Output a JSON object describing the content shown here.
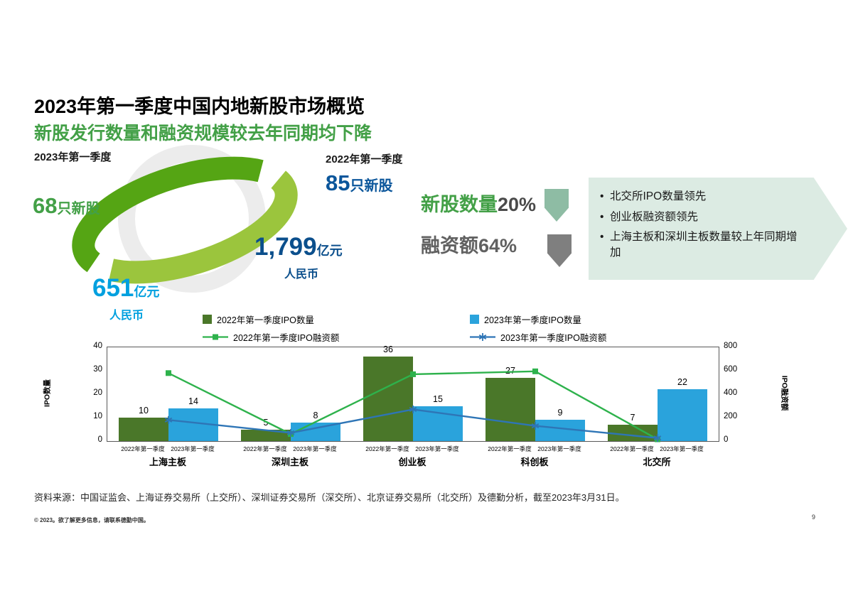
{
  "slide": {
    "title": "2023年第一季度中国内地新股市场概览",
    "subtitle": "新股发行数量和融资规模较去年同期均下降",
    "source_note": "资料来源：中国证监会、上海证券交易所（上交所）、深圳证券交易所（深交所）、北京证券交易所（北交所）及德勤分析，截至2023年3月31日。",
    "copyright": "© 2023。欲了解更多信息，请联系德勤中国。",
    "page_number": "9"
  },
  "summary": {
    "q2023": {
      "period": "2023年第一季度",
      "count": "68",
      "count_suffix": "只新股",
      "amount": "651",
      "amount_unit": "亿元",
      "currency": "人民币"
    },
    "q2022": {
      "period": "2022年第一季度",
      "count": "85",
      "count_suffix": "只新股",
      "amount": "1,799",
      "amount_unit": "亿元",
      "currency": "人民币"
    }
  },
  "changes": {
    "ipo_count": {
      "label": "新股数量",
      "value": "20%",
      "direction": "down",
      "arrow_color": "#8ebca4"
    },
    "proceeds": {
      "label": "融资额",
      "value": "64%",
      "direction": "down",
      "arrow_color": "#7f7f7f"
    }
  },
  "highlights": [
    "北交所IPO数量领先",
    "创业板融资额领先",
    "上海主板和深圳主板数量较上年同期增加"
  ],
  "colors": {
    "brand_green": "#43a047",
    "bright_blue": "#00a0df",
    "dark_blue": "#0b569b",
    "callout_bg": "#dcebe3"
  },
  "chart_data": {
    "type": "bar",
    "combo": "bar+line",
    "categories": [
      "上海主板",
      "深圳主板",
      "创业板",
      "科创板",
      "北交所"
    ],
    "x_sub_labels": [
      "2022年第一季度",
      "2023年第一季度"
    ],
    "bar_series": [
      {
        "name": "2022年第一季度IPO数量",
        "color": "#4a7729",
        "axis": "left",
        "values": [
          10,
          5,
          36,
          27,
          7
        ]
      },
      {
        "name": "2023年第一季度IPO数量",
        "color": "#2aa3dc",
        "axis": "left",
        "values": [
          14,
          8,
          15,
          9,
          22
        ]
      }
    ],
    "line_series": [
      {
        "name": "2022年第一季度IPO融资额",
        "color": "#2eb24c",
        "marker": "square",
        "axis": "right",
        "values": [
          580,
          60,
          570,
          595,
          15
        ]
      },
      {
        "name": "2023年第一季度IPO融资额",
        "color": "#2e75b6",
        "marker": "asterisk",
        "axis": "right",
        "values": [
          180,
          70,
          270,
          130,
          26
        ]
      }
    ],
    "left_axis": {
      "label": "IPO数量",
      "min": 0,
      "max": 40,
      "ticks": [
        0,
        10,
        20,
        30,
        40
      ]
    },
    "right_axis": {
      "label": "IPO融资额",
      "min": 0,
      "max": 800,
      "ticks": [
        0,
        200,
        400,
        600,
        800
      ]
    },
    "grid": "off",
    "legend_position": "top"
  }
}
